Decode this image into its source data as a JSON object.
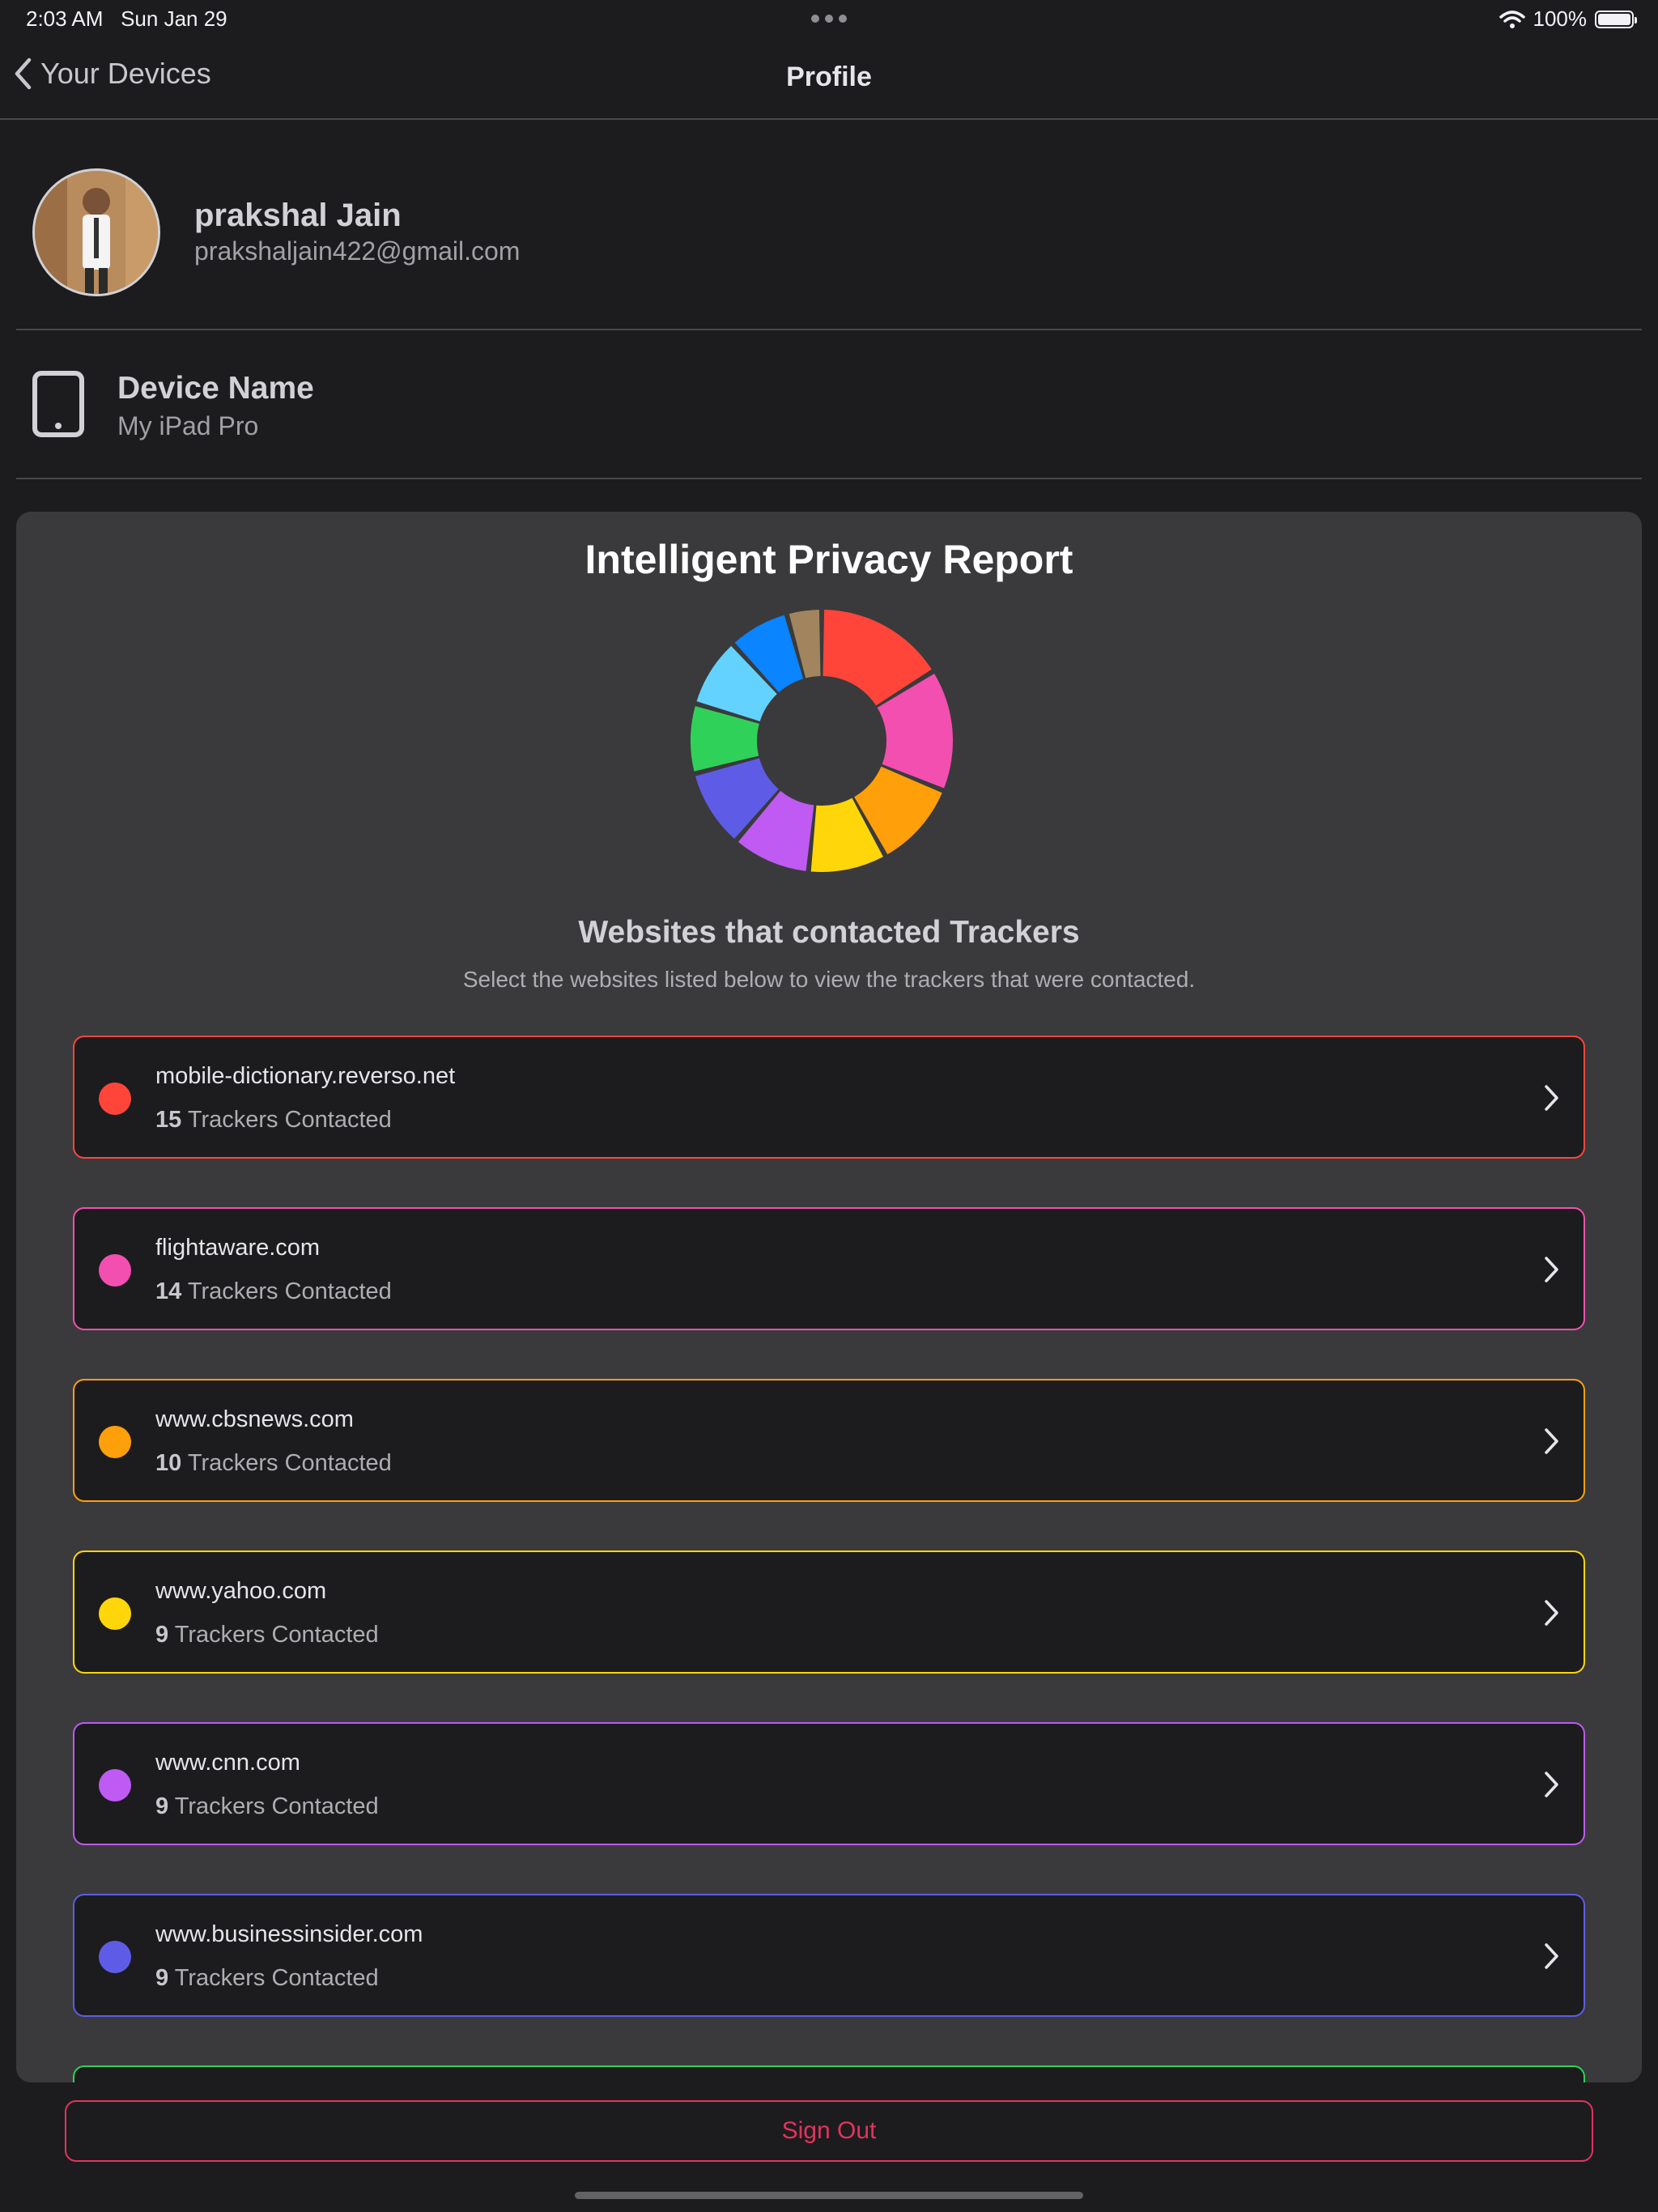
{
  "status_bar": {
    "time": "2:03 AM",
    "date": "Sun Jan 29",
    "battery": "100%"
  },
  "nav": {
    "back_label": "Your Devices",
    "title": "Profile"
  },
  "profile": {
    "name": "prakshal Jain",
    "email": "prakshaljain422@gmail.com"
  },
  "device": {
    "label": "Device Name",
    "value": "My iPad Pro"
  },
  "report": {
    "title": "Intelligent Privacy Report",
    "list_title": "Websites that contacted Trackers",
    "list_subtitle": "Select the websites listed below to view the trackers that were contacted.",
    "count_suffix": "Trackers Contacted",
    "sites": [
      {
        "name": "mobile-dictionary.reverso.net",
        "count": "15",
        "color": "#ff453a"
      },
      {
        "name": "flightaware.com",
        "count": "14",
        "color": "#f34fb0"
      },
      {
        "name": "www.cbsnews.com",
        "count": "10",
        "color": "#ff9f0a"
      },
      {
        "name": "www.yahoo.com",
        "count": "9",
        "color": "#ffd60a"
      },
      {
        "name": "www.cnn.com",
        "count": "9",
        "color": "#bf5af2"
      },
      {
        "name": "www.businessinsider.com",
        "count": "9",
        "color": "#5e5ce6"
      },
      {
        "name": "",
        "count": "",
        "color": "#30d158"
      }
    ]
  },
  "chart_data": {
    "type": "pie",
    "values": [
      15,
      14,
      10,
      9,
      9,
      9,
      8,
      8,
      7,
      4
    ],
    "colors": [
      "#ff453a",
      "#f34fb0",
      "#ff9f0a",
      "#ffd60a",
      "#bf5af2",
      "#5e5ce6",
      "#30d158",
      "#64d2ff",
      "#0a84ff",
      "#a2845e"
    ],
    "title": "",
    "donut": true
  },
  "sign_out_label": "Sign Out"
}
